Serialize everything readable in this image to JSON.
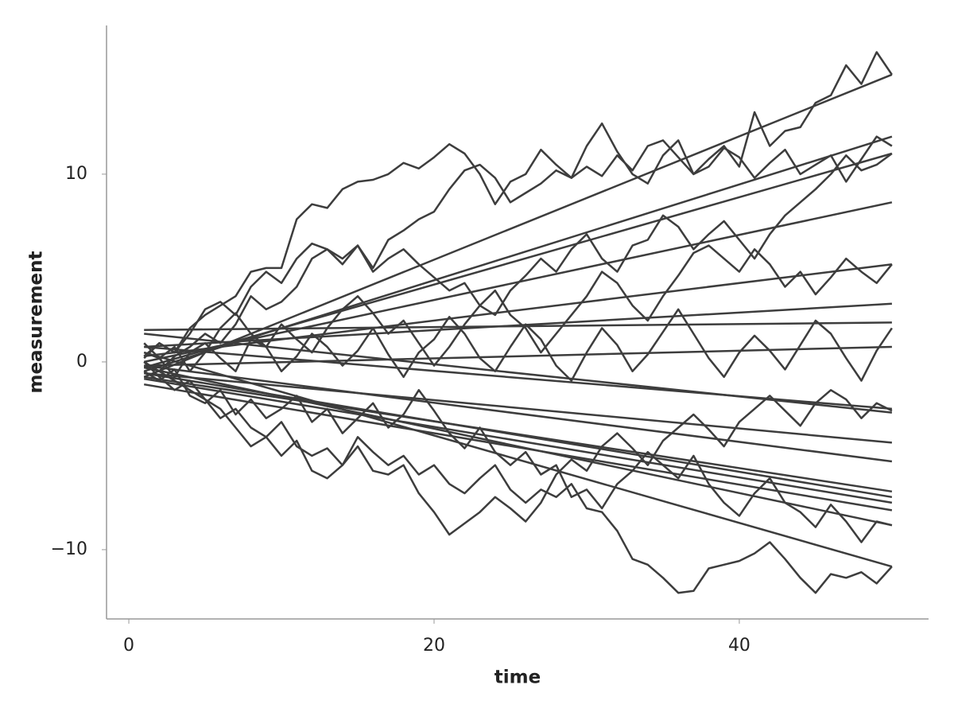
{
  "chart_data": {
    "type": "line",
    "x_label": "time",
    "y_label": "measurement",
    "color": "#3d3d3d",
    "x": [
      1,
      2,
      3,
      4,
      5,
      6,
      7,
      8,
      9,
      10,
      11,
      12,
      13,
      14,
      15,
      16,
      17,
      18,
      19,
      20,
      21,
      22,
      23,
      24,
      25,
      26,
      27,
      28,
      29,
      30,
      31,
      32,
      33,
      34,
      35,
      36,
      37,
      38,
      39,
      40,
      41,
      42,
      43,
      44,
      45,
      46,
      47,
      48,
      49,
      50
    ],
    "xlim": [
      -1.46,
      52.4
    ],
    "xticks": [
      0,
      20,
      40
    ],
    "ylim": [
      -13.69,
      17.92
    ],
    "yticks": [
      {
        "value": -10,
        "label": "−10"
      },
      0,
      10
    ],
    "series": [
      {
        "values": [
          0.2,
          1.0,
          0.5,
          1.8,
          2.5,
          3.0,
          3.5,
          4.8,
          5.0,
          5.0,
          7.6,
          8.4,
          8.2,
          9.2,
          9.6,
          9.7,
          10.0,
          10.6,
          10.3,
          10.9,
          11.6,
          11.1,
          10.0,
          8.4,
          9.6,
          10.0,
          11.3,
          10.5,
          9.8,
          10.4,
          9.9,
          11.0,
          10.2,
          11.5,
          11.8,
          10.9,
          10.0,
          10.4,
          11.4,
          10.9,
          9.8,
          10.6,
          11.3,
          10.0,
          10.5,
          11.0,
          9.6,
          10.8,
          12.0,
          11.5
        ]
      },
      {
        "values": [
          0,
          -0.5,
          0.3,
          0.8,
          1.5,
          1.0,
          2.0,
          3.5,
          2.8,
          3.2,
          4.0,
          5.5,
          6.0,
          5.2,
          6.2,
          5.0,
          6.5,
          7.0,
          7.6,
          8.0,
          9.2,
          10.2,
          10.5,
          9.8,
          8.5,
          9.0,
          9.5,
          10.2,
          9.8,
          11.5,
          12.7,
          11.2,
          10.0,
          9.5,
          11.0,
          11.8,
          10.0,
          10.8,
          11.5,
          10.4,
          13.3,
          11.5,
          12.3,
          12.5,
          13.8,
          14.2,
          15.8,
          14.8,
          16.5,
          15.3
        ]
      },
      {
        "values": [
          0,
          -0.5,
          -1.0,
          -1.5,
          -2.0,
          -3.0,
          -2.5,
          -3.5,
          -4.0,
          -3.2,
          -4.5,
          -5.0,
          -4.6,
          -5.5,
          -4.0,
          -4.8,
          -5.5,
          -5.0,
          -6.0,
          -5.5,
          -6.5,
          -7.0,
          -6.2,
          -5.5,
          -6.8,
          -7.5,
          -6.8,
          -7.2,
          -6.5,
          -7.8,
          -8.0,
          -9.0,
          -10.5,
          -10.8,
          -11.5,
          -12.3,
          -12.2,
          -11.0,
          -10.8,
          -10.6,
          -10.2,
          -9.6,
          -10.5,
          -11.5,
          -12.3,
          -11.3,
          -11.5,
          -11.2,
          -11.8,
          -10.9
        ]
      },
      {
        "values": [
          0.5,
          0.2,
          -0.8,
          0.5,
          1.0,
          0.2,
          -0.5,
          1.2,
          0.8,
          -0.5,
          0.3,
          1.5,
          0.8,
          -0.2,
          0.6,
          1.8,
          0.4,
          -0.8,
          0.5,
          1.2,
          2.4,
          1.5,
          0.2,
          -0.5,
          0.8,
          2.0,
          1.2,
          -0.2,
          -1.0,
          0.5,
          1.8,
          0.9,
          -0.5,
          0.4,
          1.6,
          2.8,
          1.5,
          0.2,
          -0.8,
          0.5,
          1.4,
          0.6,
          -0.4,
          0.9,
          2.2,
          1.5,
          0.2,
          -1.0,
          0.6,
          1.8
        ]
      },
      {
        "values": [
          0,
          -0.8,
          -1.5,
          -1.0,
          -2.0,
          -2.5,
          -3.5,
          -4.5,
          -4.0,
          -5.0,
          -4.2,
          -5.8,
          -6.2,
          -5.5,
          -4.5,
          -5.8,
          -6.0,
          -5.5,
          -7.0,
          -8.0,
          -9.2,
          -8.6,
          -8.0,
          -7.2,
          -7.8,
          -8.5,
          -7.5,
          -6.0,
          -5.2,
          -5.8,
          -4.5,
          -3.8,
          -4.6,
          -5.5,
          -4.2,
          -3.5,
          -2.8,
          -3.6,
          -4.5,
          -3.2,
          -2.5,
          -1.8,
          -2.6,
          -3.4,
          -2.2,
          -1.5,
          -2.0,
          -3.0,
          -2.2,
          -2.6
        ]
      },
      {
        "values": [
          0.3,
          1.0,
          0.5,
          1.5,
          2.8,
          3.2,
          2.5,
          4.0,
          4.8,
          4.2,
          5.5,
          6.3,
          6.0,
          5.5,
          6.2,
          4.8,
          5.5,
          6.0,
          5.2,
          4.5,
          3.8,
          4.2,
          3.0,
          2.5,
          3.8,
          4.6,
          5.5,
          4.8,
          6.0,
          6.8,
          5.5,
          4.8,
          6.2,
          6.5,
          7.8,
          7.2,
          6.0,
          6.8,
          7.5,
          6.5,
          5.5,
          6.8,
          7.8,
          8.5,
          9.2,
          10.0,
          11.0,
          10.2,
          10.5,
          11.1
        ]
      },
      {
        "values": [
          -0.5,
          -1.0,
          -0.4,
          -1.8,
          -2.2,
          -1.5,
          -2.8,
          -2.0,
          -3.0,
          -2.5,
          -1.8,
          -3.2,
          -2.5,
          -3.8,
          -3.0,
          -2.2,
          -3.5,
          -2.8,
          -1.5,
          -2.6,
          -3.8,
          -4.6,
          -3.5,
          -4.8,
          -5.5,
          -4.8,
          -6.0,
          -5.5,
          -7.2,
          -6.8,
          -7.8,
          -6.5,
          -5.8,
          -4.8,
          -5.5,
          -6.2,
          -5.0,
          -6.5,
          -7.5,
          -8.2,
          -7.0,
          -6.2,
          -7.5,
          -8.0,
          -8.8,
          -7.6,
          -8.5,
          -9.6,
          -8.5,
          -8.7
        ]
      },
      {
        "values": [
          1.0,
          0.2,
          0.8,
          -0.5,
          0.5,
          1.8,
          2.6,
          1.5,
          0.8,
          2.0,
          1.2,
          0.5,
          1.8,
          2.8,
          3.5,
          2.6,
          1.5,
          2.2,
          1.0,
          -0.2,
          0.8,
          2.0,
          3.0,
          3.8,
          2.5,
          1.8,
          0.5,
          1.5,
          2.5,
          3.5,
          4.8,
          4.2,
          3.0,
          2.2,
          3.5,
          4.6,
          5.8,
          6.2,
          5.5,
          4.8,
          6.0,
          5.2,
          4.0,
          4.8,
          3.6,
          4.5,
          5.5,
          4.8,
          4.2,
          5.2
        ]
      }
    ],
    "fit_lines": [
      {
        "x": [
          1,
          50
        ],
        "values": [
          -0.8,
          15.3
        ]
      },
      {
        "x": [
          1,
          50
        ],
        "values": [
          -0.5,
          12.0
        ]
      },
      {
        "x": [
          1,
          50
        ],
        "values": [
          -0.3,
          11.1
        ]
      },
      {
        "x": [
          1,
          50
        ],
        "values": [
          0.0,
          8.5
        ]
      },
      {
        "x": [
          1,
          50
        ],
        "values": [
          0.3,
          5.2
        ]
      },
      {
        "x": [
          1,
          50
        ],
        "values": [
          0.8,
          3.1
        ]
      },
      {
        "x": [
          1,
          50
        ],
        "values": [
          1.7,
          2.1
        ]
      },
      {
        "x": [
          1,
          50
        ],
        "values": [
          -0.2,
          0.8
        ]
      },
      {
        "x": [
          1,
          50
        ],
        "values": [
          0.8,
          -2.5
        ]
      },
      {
        "x": [
          1,
          50
        ],
        "values": [
          1.5,
          -2.7
        ]
      },
      {
        "x": [
          1,
          50
        ],
        "values": [
          -0.6,
          -4.3
        ]
      },
      {
        "x": [
          1,
          50
        ],
        "values": [
          -0.2,
          -5.3
        ]
      },
      {
        "x": [
          1,
          50
        ],
        "values": [
          -0.8,
          -6.9
        ]
      },
      {
        "x": [
          1,
          50
        ],
        "values": [
          -0.6,
          -7.2
        ]
      },
      {
        "x": [
          1,
          50
        ],
        "values": [
          -0.9,
          -7.5
        ]
      },
      {
        "x": [
          1,
          50
        ],
        "values": [
          -1.2,
          -7.9
        ]
      },
      {
        "x": [
          1,
          50
        ],
        "values": [
          -0.3,
          -8.7
        ]
      },
      {
        "x": [
          1,
          50
        ],
        "values": [
          0.5,
          -10.9
        ]
      }
    ]
  }
}
